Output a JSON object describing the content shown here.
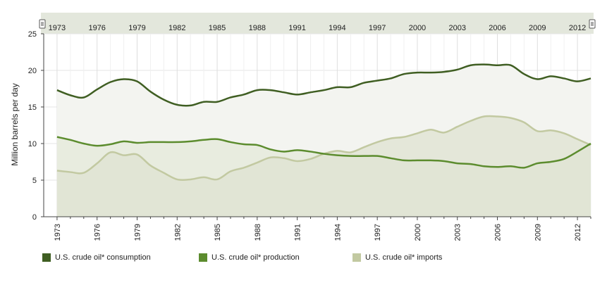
{
  "chart_data": {
    "type": "area",
    "ylabel": "Million barrels per day",
    "ylim": [
      0,
      25
    ],
    "yticks": [
      0,
      5,
      10,
      15,
      20,
      25
    ],
    "xlim": [
      1972,
      2013
    ],
    "xticks": [
      1973,
      1976,
      1979,
      1982,
      1985,
      1988,
      1991,
      1994,
      1997,
      2000,
      2003,
      2006,
      2009,
      2012
    ],
    "grid": true,
    "legend_position": "bottom",
    "x": [
      1973,
      1974,
      1975,
      1976,
      1977,
      1978,
      1979,
      1980,
      1981,
      1982,
      1983,
      1984,
      1985,
      1986,
      1987,
      1988,
      1989,
      1990,
      1991,
      1992,
      1993,
      1994,
      1995,
      1996,
      1997,
      1998,
      1999,
      2000,
      2001,
      2002,
      2003,
      2004,
      2005,
      2006,
      2007,
      2008,
      2009,
      2010,
      2011,
      2012,
      2013
    ],
    "series": [
      {
        "name": "U.S. crude oil* consumption",
        "color": "#3f5e22",
        "values": [
          17.3,
          16.6,
          16.3,
          17.4,
          18.4,
          18.8,
          18.5,
          17.1,
          16.0,
          15.3,
          15.2,
          15.7,
          15.7,
          16.3,
          16.7,
          17.3,
          17.3,
          17.0,
          16.7,
          17.0,
          17.3,
          17.7,
          17.7,
          18.3,
          18.6,
          18.9,
          19.5,
          19.7,
          19.7,
          19.8,
          20.1,
          20.7,
          20.8,
          20.7,
          20.7,
          19.5,
          18.8,
          19.2,
          18.9,
          18.5,
          18.9
        ]
      },
      {
        "name": "U.S. crude oil* production",
        "color": "#5c8c2e",
        "values": [
          10.9,
          10.5,
          10.0,
          9.7,
          9.9,
          10.3,
          10.1,
          10.2,
          10.2,
          10.2,
          10.3,
          10.5,
          10.6,
          10.2,
          9.9,
          9.8,
          9.2,
          8.9,
          9.1,
          8.9,
          8.6,
          8.4,
          8.3,
          8.3,
          8.3,
          8.0,
          7.7,
          7.7,
          7.7,
          7.6,
          7.3,
          7.2,
          6.9,
          6.8,
          6.9,
          6.7,
          7.3,
          7.5,
          7.9,
          8.9,
          10.0
        ]
      },
      {
        "name": "U.S. crude oil* imports",
        "color": "#c2c9a1",
        "values": [
          6.3,
          6.1,
          6.0,
          7.3,
          8.8,
          8.4,
          8.5,
          7.0,
          6.0,
          5.1,
          5.1,
          5.4,
          5.1,
          6.2,
          6.7,
          7.4,
          8.1,
          8.0,
          7.6,
          7.9,
          8.6,
          9.0,
          8.8,
          9.5,
          10.2,
          10.7,
          10.9,
          11.4,
          11.9,
          11.5,
          12.3,
          13.1,
          13.7,
          13.7,
          13.5,
          12.9,
          11.7,
          11.8,
          11.4,
          10.6,
          9.8
        ]
      }
    ]
  }
}
